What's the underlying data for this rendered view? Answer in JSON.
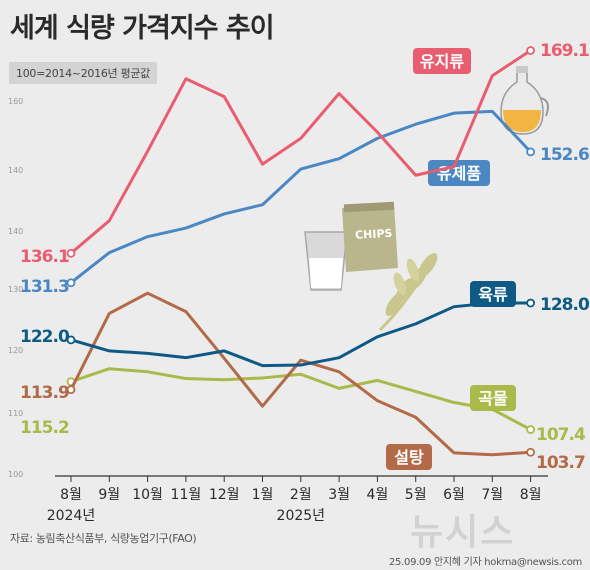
{
  "title": "세계 식량 가격지수 추이",
  "subtitle": "100=2014~2016년 평균값",
  "source": "자료: 농림축산식품부, 식량농업기구(FAO)",
  "credit": "25.09.09 안지혜 기자 hokma@newsis.com",
  "watermark": "뉴시스",
  "chart_data": {
    "type": "line",
    "title": "세계 식량 가격지수 추이",
    "categories": [
      "8월",
      "9월",
      "10월",
      "11월",
      "12월",
      "1월",
      "2월",
      "3월",
      "4월",
      "5월",
      "6월",
      "7월",
      "8월"
    ],
    "year_labels": [
      "2024년",
      "2025년"
    ],
    "y_ticks": [
      "100",
      "110",
      "120",
      "130",
      "140",
      "140",
      "160"
    ],
    "ylim": [
      100,
      170
    ],
    "grid": false,
    "series": [
      {
        "name": "유지류",
        "color": "#e85d70",
        "values": [
          136.1,
          141.4,
          152.7,
          164.5,
          161.6,
          150.6,
          154.8,
          162.1,
          155.8,
          148.8,
          150.2,
          165.0,
          169.1
        ],
        "first_label": "136.1",
        "last_label": "169.1"
      },
      {
        "name": "유제품",
        "color": "#4b87c2",
        "values": [
          131.3,
          136.2,
          138.8,
          140.2,
          142.5,
          144.0,
          149.8,
          151.5,
          154.8,
          157.1,
          158.9,
          159.2,
          152.6
        ],
        "first_label": "131.3",
        "last_label": "152.6"
      },
      {
        "name": "육류",
        "color": "#0e5a85",
        "values": [
          122.0,
          120.2,
          119.8,
          119.1,
          120.2,
          117.8,
          117.9,
          119.1,
          122.5,
          124.6,
          127.4,
          128.0,
          128.0
        ],
        "first_label": "122.0",
        "last_label": "128.0"
      },
      {
        "name": "설탕",
        "color": "#b26a48",
        "values": [
          113.9,
          126.3,
          129.6,
          126.6,
          119.0,
          111.2,
          118.7,
          116.8,
          112.1,
          109.4,
          103.6,
          103.3,
          103.7
        ],
        "first_label": "113.9",
        "last_label": "103.7"
      },
      {
        "name": "곡물",
        "color": "#a9b94a",
        "values": [
          115.2,
          117.3,
          116.8,
          115.7,
          115.5,
          115.8,
          116.4,
          114.1,
          115.4,
          113.6,
          111.8,
          110.7,
          107.4
        ],
        "first_label": "115.2",
        "last_label": "107.4"
      }
    ]
  }
}
